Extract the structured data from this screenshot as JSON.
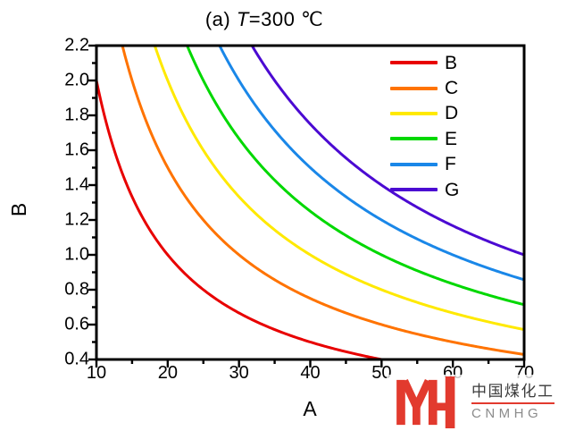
{
  "title": {
    "prefix": "(a) ",
    "italic_var": "T",
    "suffix": "=300 ℃"
  },
  "chart_data": {
    "type": "line",
    "title": "(a) T=300 ℃",
    "xlabel": "A",
    "ylabel": "B",
    "xlim": [
      10,
      70
    ],
    "ylim": [
      0.4,
      2.2
    ],
    "grid": false,
    "legend_position": "top-right-inside",
    "curve_formula": "B = k / A",
    "x_major_ticks": [
      10,
      20,
      30,
      40,
      50,
      60,
      70
    ],
    "x_tick_labels": [
      "10",
      "20",
      "30",
      "40",
      "50",
      "60",
      "70"
    ],
    "x_minor_ticks": [
      15,
      25,
      35,
      45,
      55,
      65
    ],
    "y_major_ticks": [
      0.4,
      0.6,
      0.8,
      1.0,
      1.2,
      1.4,
      1.6,
      1.8,
      2.0,
      2.2
    ],
    "y_tick_labels": [
      "0.4",
      "0.6",
      "0.8",
      "1.0",
      "1.2",
      "1.4",
      "1.6",
      "1.8",
      "2.0",
      "2.2"
    ],
    "y_minor_ticks": [
      0.5,
      0.7,
      0.9,
      1.1,
      1.3,
      1.5,
      1.7,
      1.9,
      2.1
    ],
    "series": [
      {
        "name": "B",
        "color": "#e80000",
        "k": 20,
        "a_start": 10,
        "a_end": 50,
        "points": [
          [
            10,
            2.0
          ],
          [
            12,
            1.667
          ],
          [
            14,
            1.429
          ],
          [
            16,
            1.25
          ],
          [
            18,
            1.111
          ],
          [
            20,
            1.0
          ],
          [
            25,
            0.8
          ],
          [
            30,
            0.667
          ],
          [
            35,
            0.571
          ],
          [
            40,
            0.5
          ],
          [
            45,
            0.444
          ],
          [
            50,
            0.4
          ]
        ]
      },
      {
        "name": "C",
        "color": "#ff7300",
        "k": 30,
        "a_start": 13.64,
        "a_end": 70,
        "points": [
          [
            13.64,
            2.2
          ],
          [
            15,
            2.0
          ],
          [
            20,
            1.5
          ],
          [
            25,
            1.2
          ],
          [
            30,
            1.0
          ],
          [
            35,
            0.857
          ],
          [
            40,
            0.75
          ],
          [
            45,
            0.667
          ],
          [
            50,
            0.6
          ],
          [
            55,
            0.545
          ],
          [
            60,
            0.5
          ],
          [
            65,
            0.462
          ],
          [
            70,
            0.429
          ]
        ]
      },
      {
        "name": "D",
        "color": "#ffe900",
        "k": 40,
        "a_start": 18.18,
        "a_end": 70,
        "points": [
          [
            18.18,
            2.2
          ],
          [
            20,
            2.0
          ],
          [
            25,
            1.6
          ],
          [
            30,
            1.333
          ],
          [
            35,
            1.143
          ],
          [
            40,
            1.0
          ],
          [
            45,
            0.889
          ],
          [
            50,
            0.8
          ],
          [
            55,
            0.727
          ],
          [
            60,
            0.667
          ],
          [
            65,
            0.615
          ],
          [
            70,
            0.571
          ]
        ]
      },
      {
        "name": "E",
        "color": "#00d800",
        "k": 50,
        "a_start": 22.73,
        "a_end": 70,
        "points": [
          [
            22.73,
            2.2
          ],
          [
            25,
            2.0
          ],
          [
            30,
            1.667
          ],
          [
            35,
            1.429
          ],
          [
            40,
            1.25
          ],
          [
            45,
            1.111
          ],
          [
            50,
            1.0
          ],
          [
            55,
            0.909
          ],
          [
            60,
            0.833
          ],
          [
            65,
            0.769
          ],
          [
            70,
            0.714
          ]
        ]
      },
      {
        "name": "F",
        "color": "#1a87e8",
        "k": 60,
        "a_start": 27.27,
        "a_end": 70,
        "points": [
          [
            27.27,
            2.2
          ],
          [
            30,
            2.0
          ],
          [
            35,
            1.714
          ],
          [
            40,
            1.5
          ],
          [
            45,
            1.333
          ],
          [
            50,
            1.2
          ],
          [
            55,
            1.091
          ],
          [
            60,
            1.0
          ],
          [
            65,
            0.923
          ],
          [
            70,
            0.857
          ]
        ]
      },
      {
        "name": "G",
        "color": "#4b0ad2",
        "k": 70,
        "a_start": 31.82,
        "a_end": 70,
        "points": [
          [
            31.82,
            2.2
          ],
          [
            35,
            2.0
          ],
          [
            40,
            1.75
          ],
          [
            45,
            1.556
          ],
          [
            50,
            1.4
          ],
          [
            55,
            1.273
          ],
          [
            60,
            1.167
          ],
          [
            65,
            1.077
          ],
          [
            70,
            1.0
          ]
        ]
      }
    ]
  },
  "watermark": {
    "cn_text": "中国煤化工",
    "en_text": "CNMHG",
    "brand_red": "#e23a2e"
  }
}
